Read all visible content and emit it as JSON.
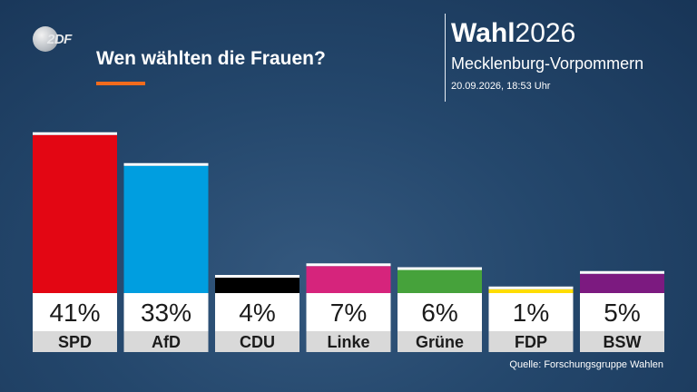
{
  "header": {
    "logo_text": "2DF",
    "title": "Wen wählten die Frauen?",
    "brand_bold": "Wahl",
    "brand_year": "2026",
    "region": "Mecklenburg-Vorpommern",
    "timestamp": "20.09.2026, 18:53 Uhr"
  },
  "footer": {
    "source": "Quelle: Forschungsgruppe Wahlen"
  },
  "colors": {
    "accent_underline": "#f26b1d",
    "background": "#24476c"
  },
  "chart_data": {
    "type": "bar",
    "title": "Wen wählten die Frauen?",
    "categories": [
      "SPD",
      "AfD",
      "CDU",
      "Linke",
      "Grüne",
      "FDP",
      "BSW"
    ],
    "values": [
      41,
      33,
      4,
      7,
      6,
      1,
      5
    ],
    "value_labels": [
      "41%",
      "33%",
      "4%",
      "7%",
      "6%",
      "1%",
      "5%"
    ],
    "colors": [
      "#e30613",
      "#009ee0",
      "#000000",
      "#d6247c",
      "#46a23b",
      "#ffdd00",
      "#7c1a80"
    ],
    "unit": "%",
    "grid": false,
    "legend": "none"
  }
}
